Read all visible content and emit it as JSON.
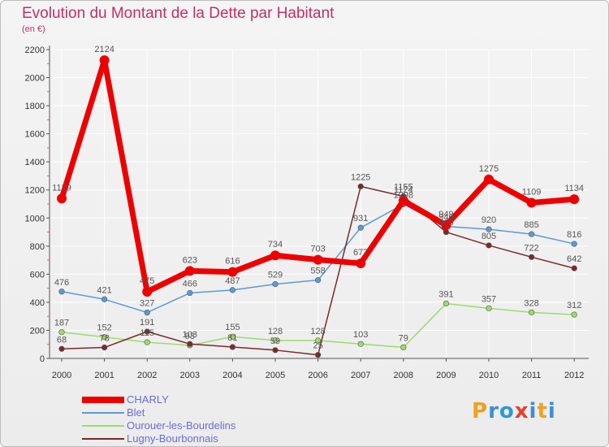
{
  "header": {
    "title": "Evolution du Montant de la Dette par Habitant",
    "unit": "(en €)"
  },
  "logo": {
    "letters": [
      "P",
      "r",
      "o",
      "x",
      "i",
      "t",
      "i"
    ],
    "colors": [
      "#f0a020",
      "#3a8fd8",
      "#2a9bd8",
      "#e8402a",
      "#3a8fd8",
      "#f0a020",
      "#3a8fd8"
    ]
  },
  "colors": {
    "axis": "#555555",
    "tick_mark": "#e06060",
    "grid": "#ffffff",
    "label_text": "#555555"
  },
  "chart_data": {
    "type": "line",
    "title": "Evolution du Montant de la Dette par Habitant",
    "ylabel": "(en €)",
    "xlabel": "",
    "x": [
      "2000",
      "2001",
      "2002",
      "2003",
      "2004",
      "2005",
      "2006",
      "2007",
      "2008",
      "2009",
      "2010",
      "2011",
      "2012"
    ],
    "ylim": [
      0,
      2200
    ],
    "yticks": [
      "0",
      "200",
      "400",
      "600",
      "800",
      "1000",
      "1200",
      "1400",
      "1600",
      "1800",
      "2000",
      "2200"
    ],
    "grid": true,
    "legend_position": "bottom",
    "series": [
      {
        "name": "CHARLY",
        "color": "#ee0000",
        "values": [
          1139,
          2124,
          475,
          623,
          616,
          734,
          703,
          677,
          1124,
          949,
          1275,
          1109,
          1134
        ],
        "labels": [
          "1139",
          "2124",
          "475",
          "623",
          "616",
          "734",
          "703",
          "677",
          "1124",
          "949",
          "1275",
          "1109",
          "1134"
        ]
      },
      {
        "name": "Blet",
        "color": "#5b9bd5",
        "values": [
          476,
          421,
          327,
          466,
          487,
          529,
          558,
          931,
          1098,
          940,
          920,
          885,
          816
        ],
        "labels": [
          "476",
          "421",
          "327",
          "466",
          "487",
          "529",
          "558",
          "931",
          "1098",
          "940",
          "920",
          "885",
          "816"
        ]
      },
      {
        "name": "Ourouer-les-Bourdelins",
        "color": "#9bdc6a",
        "values": [
          187,
          152,
          115,
          93,
          155,
          128,
          128,
          103,
          79,
          391,
          357,
          328,
          312
        ],
        "labels": [
          "187",
          "152",
          "115",
          "93",
          "155",
          "128",
          "128",
          "103",
          "79",
          "391",
          "357",
          "328",
          "312"
        ]
      },
      {
        "name": "Lugny-Bourbonnais",
        "color": "#7a2a2a",
        "values": [
          68,
          78,
          191,
          103,
          81,
          59,
          25,
          1225,
          1155,
          900,
          805,
          722,
          642
        ],
        "labels": [
          "68",
          "78",
          "191",
          "103",
          "81",
          "59",
          "25",
          "1225",
          "1155",
          "900",
          "805",
          "722",
          "642"
        ]
      }
    ]
  }
}
